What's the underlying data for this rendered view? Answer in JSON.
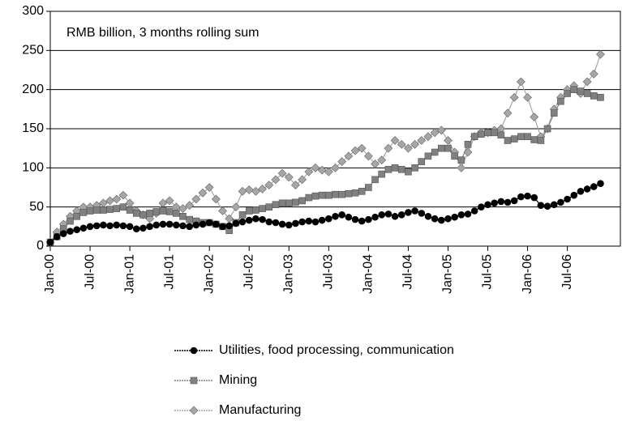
{
  "chart_data": {
    "type": "line",
    "annotation": "RMB billion, 3 months rolling sum",
    "categories": [
      "Jan-00",
      null,
      null,
      null,
      null,
      null,
      "Jul-00",
      null,
      null,
      null,
      null,
      null,
      "Jan-01",
      null,
      null,
      null,
      null,
      null,
      "Jul-01",
      null,
      null,
      null,
      null,
      null,
      "Jan-02",
      null,
      null,
      null,
      null,
      null,
      "Jul-02",
      null,
      null,
      null,
      null,
      null,
      "Jan-03",
      null,
      null,
      null,
      null,
      null,
      "Jul-03",
      null,
      null,
      null,
      null,
      null,
      "Jan-04",
      null,
      null,
      null,
      null,
      null,
      "Jul-04",
      null,
      null,
      null,
      null,
      null,
      "Jan-05",
      null,
      null,
      null,
      null,
      null,
      "Jul-05",
      null,
      null,
      null,
      null,
      null,
      "Jan-06",
      null,
      null,
      null,
      null,
      null,
      "Jul-06",
      null,
      null,
      null,
      null,
      null
    ],
    "series": [
      {
        "name": "Utilities, food processing, communication",
        "color": "#000000",
        "marker": "circle",
        "values": [
          5,
          12,
          16,
          19,
          21,
          23,
          25,
          26,
          27,
          26,
          27,
          26,
          25,
          22,
          23,
          25,
          27,
          28,
          28,
          27,
          26,
          25,
          27,
          28,
          30,
          28,
          25,
          26,
          29,
          31,
          33,
          35,
          34,
          31,
          30,
          28,
          27,
          29,
          31,
          32,
          31,
          33,
          35,
          38,
          40,
          37,
          34,
          32,
          34,
          37,
          40,
          41,
          38,
          40,
          43,
          45,
          42,
          38,
          35,
          33,
          35,
          37,
          40,
          41,
          45,
          50,
          53,
          55,
          57,
          56,
          58,
          63,
          64,
          62,
          52,
          51,
          53,
          56,
          60,
          65,
          70,
          73,
          76,
          80
        ]
      },
      {
        "name": "Mining",
        "color": "#808080",
        "marker": "square",
        "values": [
          5,
          12,
          22,
          32,
          38,
          43,
          45,
          46,
          46,
          47,
          48,
          50,
          46,
          42,
          40,
          42,
          44,
          45,
          44,
          42,
          38,
          34,
          32,
          30,
          30,
          28,
          25,
          20,
          30,
          40,
          45,
          46,
          48,
          50,
          53,
          55,
          55,
          56,
          58,
          62,
          64,
          65,
          65,
          66,
          66,
          67,
          68,
          70,
          75,
          85,
          92,
          98,
          100,
          98,
          95,
          100,
          108,
          115,
          120,
          125,
          125,
          115,
          110,
          130,
          140,
          143,
          145,
          145,
          142,
          135,
          137,
          140,
          140,
          136,
          135,
          150,
          170,
          185,
          195,
          200,
          198,
          195,
          192,
          190
        ]
      },
      {
        "name": "Manufacturing",
        "color": "#a6a6a6",
        "marker": "diamond",
        "values": [
          5,
          18,
          28,
          38,
          45,
          50,
          50,
          52,
          55,
          58,
          60,
          65,
          55,
          45,
          40,
          35,
          42,
          55,
          58,
          50,
          48,
          52,
          60,
          68,
          75,
          60,
          45,
          35,
          50,
          70,
          72,
          70,
          73,
          78,
          85,
          93,
          88,
          78,
          85,
          95,
          100,
          97,
          95,
          100,
          108,
          115,
          122,
          125,
          115,
          105,
          110,
          125,
          135,
          130,
          125,
          130,
          135,
          140,
          145,
          148,
          135,
          120,
          100,
          120,
          140,
          145,
          145,
          148,
          150,
          170,
          190,
          210,
          190,
          165,
          140,
          150,
          175,
          190,
          200,
          205,
          195,
          210,
          220,
          245
        ]
      }
    ],
    "ylim": [
      0,
      300
    ],
    "yticks": [
      0,
      50,
      100,
      150,
      200,
      250,
      300
    ],
    "grid": true
  }
}
